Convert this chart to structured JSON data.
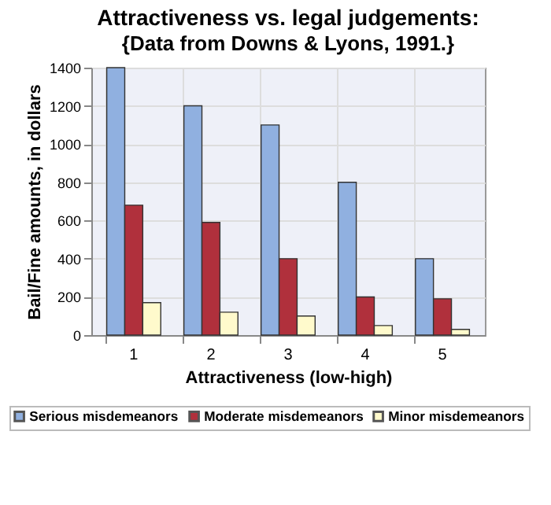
{
  "chart_data": {
    "type": "bar",
    "title": "Attractiveness vs. legal judgements:",
    "subtitle": "{Data from Downs & Lyons, 1991.}",
    "xlabel": "Attractiveness (low-high)",
    "ylabel": "Bail/Fine amounts, in dollars",
    "categories": [
      "1",
      "2",
      "3",
      "4",
      "5"
    ],
    "series": [
      {
        "name": "Serious misdemeanors",
        "color": "#90b0e0",
        "values": [
          1400,
          1200,
          1100,
          800,
          400
        ]
      },
      {
        "name": "Moderate misdemeanors",
        "color": "#b0303c",
        "values": [
          680,
          590,
          400,
          200,
          190
        ]
      },
      {
        "name": "Minor misdemeanors",
        "color": "#fffacc",
        "values": [
          170,
          120,
          100,
          50,
          30
        ]
      }
    ],
    "ylim": [
      0,
      1400
    ],
    "yticks": [
      0,
      200,
      400,
      600,
      800,
      1000,
      1200,
      1400
    ],
    "grid": true,
    "legend": "bottom"
  }
}
